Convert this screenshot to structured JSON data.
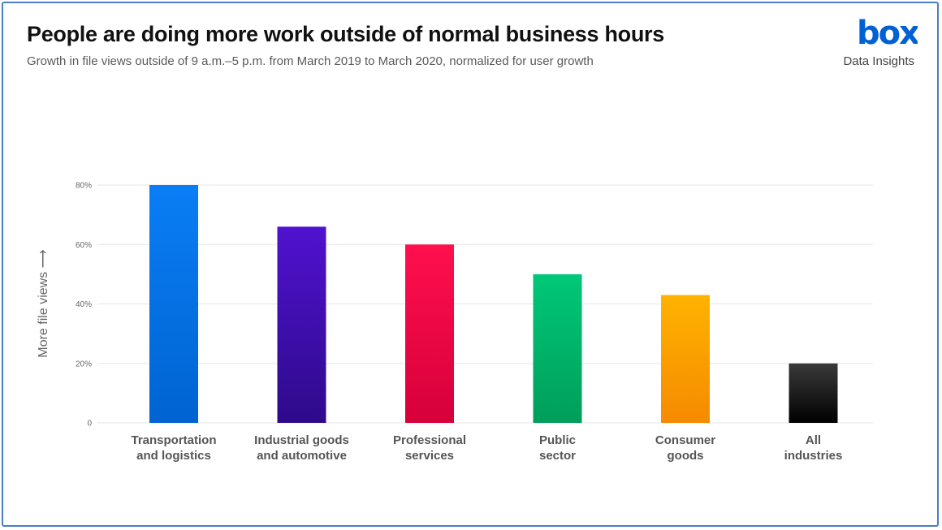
{
  "header": {
    "title": "People are doing more work outside of normal business hours",
    "subtitle": "Growth in file views outside of 9 a.m.–5 p.m. from March 2019 to March 2020, normalized for user growth"
  },
  "brand": {
    "logo_text": "box",
    "logo_color": "#0061d5",
    "sub_label": "Data Insights"
  },
  "chart_data": {
    "type": "bar",
    "ylabel": "More file views",
    "ylim": [
      0,
      80
    ],
    "yticks": [
      0,
      20,
      40,
      60,
      80
    ],
    "ytick_labels": [
      "0",
      "20%",
      "40%",
      "60%",
      "80%"
    ],
    "grid": true,
    "categories": [
      [
        "Transportation",
        "and logistics"
      ],
      [
        "Industrial goods",
        "and automotive"
      ],
      [
        "Professional",
        "services"
      ],
      [
        "Public",
        "sector"
      ],
      [
        "Consumer",
        "goods"
      ],
      [
        "All",
        "industries"
      ]
    ],
    "values": [
      80,
      66,
      60,
      50,
      43,
      20
    ],
    "colors": [
      [
        "#0a7ef5",
        "#0063d1"
      ],
      [
        "#5012cf",
        "#2e0a8a"
      ],
      [
        "#ff0f4e",
        "#d6003a"
      ],
      [
        "#00c878",
        "#009e5b"
      ],
      [
        "#ffb300",
        "#f58a00"
      ],
      [
        "#3a3a3a",
        "#000000"
      ]
    ]
  }
}
